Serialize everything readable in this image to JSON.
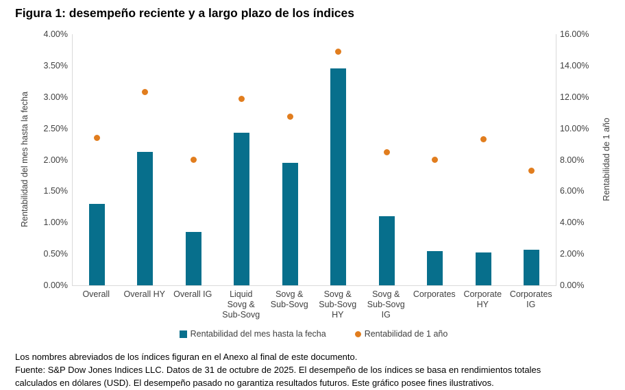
{
  "title": "Figura 1: desempeño reciente y a largo plazo de los índices",
  "chart_data": {
    "type": "bar",
    "categories": [
      "Overall",
      "Overall HY",
      "Overall IG",
      "Liquid Sovg & Sub-Sovg",
      "Sovg & Sub-Sovg",
      "Sovg & Sub-Sovg HY",
      "Sovg & Sub-Sovg IG",
      "Corporates",
      "Corporate HY",
      "Corporates IG"
    ],
    "category_lines": [
      [
        "Overall"
      ],
      [
        "Overall HY"
      ],
      [
        "Overall IG"
      ],
      [
        "Liquid",
        "Sovg &",
        "Sub-Sovg"
      ],
      [
        "Sovg &",
        "Sub-Sovg"
      ],
      [
        "Sovg &",
        "Sub-Sovg",
        "HY"
      ],
      [
        "Sovg &",
        "Sub-Sovg",
        "IG"
      ],
      [
        "Corporates"
      ],
      [
        "Corporate",
        "HY"
      ],
      [
        "Corporates",
        "IG"
      ]
    ],
    "series": [
      {
        "name": "Rentabilidad del mes hasta la fecha",
        "type": "bar",
        "axis": "left",
        "color": "#076F8C",
        "values": [
          1.3,
          2.12,
          0.85,
          2.43,
          1.95,
          3.45,
          1.1,
          0.55,
          0.52,
          0.57
        ]
      },
      {
        "name": "Rentabilidad de 1 año",
        "type": "scatter",
        "axis": "right",
        "color": "#E17D1E",
        "values": [
          9.4,
          12.3,
          8.0,
          11.9,
          10.75,
          14.9,
          8.5,
          8.0,
          9.3,
          7.3
        ]
      }
    ],
    "left_axis": {
      "label": "Rentabilidad del mes hasta la fecha",
      "min": 0,
      "max": 4,
      "ticks": [
        "4.00%",
        "3.50%",
        "3.00%",
        "2.50%",
        "2.00%",
        "1.50%",
        "1.00%",
        "0.50%",
        "0.00%"
      ]
    },
    "right_axis": {
      "label": "Rentabilidad de 1 año",
      "min": 0,
      "max": 16,
      "ticks": [
        "16.00%",
        "14.00%",
        "12.00%",
        "10.00%",
        "8.00%",
        "6.00%",
        "4.00%",
        "2.00%",
        "0.00%"
      ]
    },
    "grid": false,
    "legend_position": "bottom",
    "axis_line_color": "#D9D9D9"
  },
  "footer": {
    "lines": [
      "Los nombres abreviados de los índices figuran en el Anexo al final de este documento.",
      "Fuente: S&P Dow Jones Indices LLC. Datos de 31 de octubre de 2025. El desempeño de los índices se basa en rendimientos totales",
      "calculados en dólares (USD). El desempeño pasado no garantiza resultados futuros. Este gráfico posee fines ilustrativos."
    ]
  }
}
